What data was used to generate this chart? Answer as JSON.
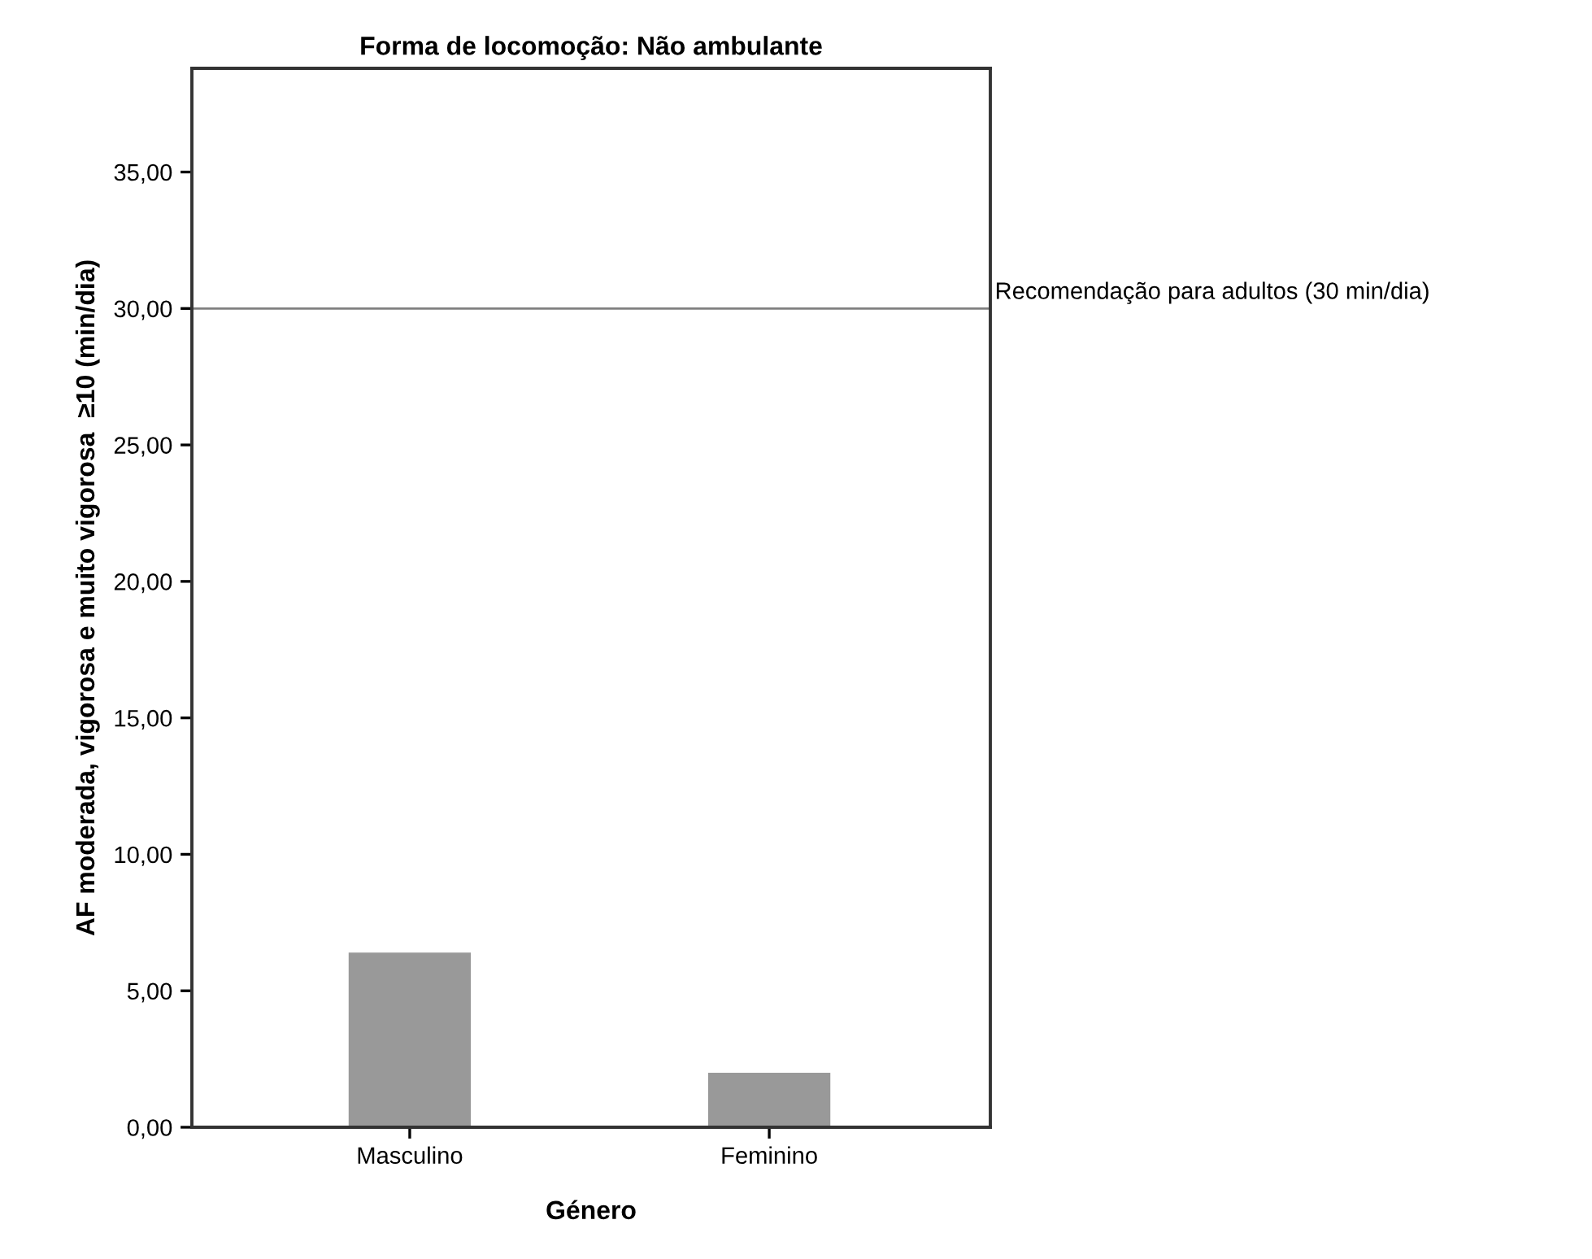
{
  "chart_data": {
    "type": "bar",
    "title": "Forma de locomoção: Não ambulante",
    "xlabel": "Género",
    "ylabel": "AF moderada, vigorosa e muito vigorosa  ≥10 (min/dia)",
    "categories": [
      "Masculino",
      "Feminino"
    ],
    "series": [
      {
        "color": "#999999",
        "values": [
          6.4,
          2.0
        ]
      }
    ],
    "ylim": [
      0,
      38.8
    ],
    "yticks": [
      {
        "value": 0,
        "label": "0,00"
      },
      {
        "value": 5,
        "label": "5,00"
      },
      {
        "value": 10,
        "label": "10,00"
      },
      {
        "value": 15,
        "label": "15,00"
      },
      {
        "value": 20,
        "label": "20,00"
      },
      {
        "value": 25,
        "label": "25,00"
      },
      {
        "value": 30,
        "label": "30,00"
      },
      {
        "value": 35,
        "label": "35,00"
      }
    ],
    "ref_lines": [
      {
        "axis": "y",
        "value": 30,
        "label": "Recomendação para adultos (30 min/dia)",
        "color": "#808080"
      }
    ],
    "grid": false,
    "legend": false
  }
}
